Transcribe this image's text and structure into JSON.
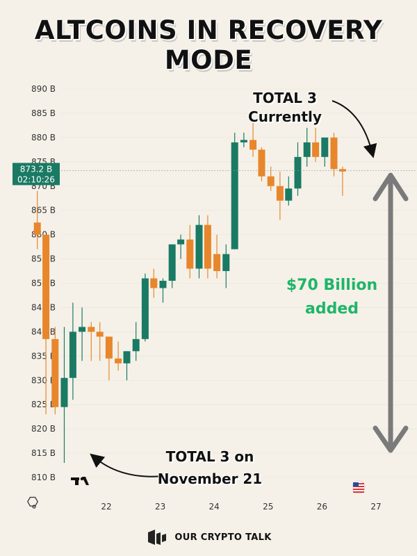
{
  "title": "ALTCOINS IN RECOVERY MODE",
  "annotations": {
    "current_line1": "TOTAL 3",
    "current_line2": "Currently",
    "added_line1": "$70 Billion",
    "added_line2": "added",
    "past_line1": "TOTAL 3 on",
    "past_line2": "November 21"
  },
  "price_label": {
    "value": "873.2 B",
    "countdown": "02:10:26"
  },
  "brand": {
    "name": "OUR CRYPTO TALK"
  },
  "colors": {
    "bull": "#1a7a64",
    "bear": "#e8862b",
    "accent_green": "#1fb56a",
    "price_tag": "#1a7a64",
    "arrow_gray": "#7a7a7a"
  },
  "chart_data": {
    "type": "candlestick",
    "ylim": [
      807,
      893
    ],
    "y_ticks": [
      {
        "v": 890,
        "label": "890 B"
      },
      {
        "v": 885,
        "label": "885 B"
      },
      {
        "v": 880,
        "label": "880 B"
      },
      {
        "v": 875,
        "label": "875 B"
      },
      {
        "v": 870,
        "label": "870 B"
      },
      {
        "v": 865,
        "label": "865 B"
      },
      {
        "v": 860,
        "label": "860 B"
      },
      {
        "v": 855,
        "label": "855 B"
      },
      {
        "v": 850,
        "label": "850 B"
      },
      {
        "v": 845,
        "label": "845 B"
      },
      {
        "v": 840,
        "label": "840 B"
      },
      {
        "v": 835,
        "label": "835 B"
      },
      {
        "v": 830,
        "label": "830 B"
      },
      {
        "v": 825,
        "label": "825 B"
      },
      {
        "v": 820,
        "label": "820 B"
      },
      {
        "v": 815,
        "label": "815 B"
      },
      {
        "v": 810,
        "label": "810 B"
      }
    ],
    "x_ticks": [
      {
        "v": 21.95,
        "label": "22"
      },
      {
        "v": 22.95,
        "label": "23"
      },
      {
        "v": 23.95,
        "label": "24"
      },
      {
        "v": 24.95,
        "label": "25"
      },
      {
        "v": 25.95,
        "label": "26"
      },
      {
        "v": 26.95,
        "label": "27"
      }
    ],
    "xlim": [
      20.65,
      27.4
    ],
    "current_price": 873.2,
    "candles": [
      {
        "t": 20.67,
        "o": 862.5,
        "h": 869,
        "l": 857,
        "c": 860
      },
      {
        "t": 20.83,
        "o": 860,
        "h": 860,
        "l": 823,
        "c": 838.5
      },
      {
        "t": 21.0,
        "o": 838.5,
        "h": 841,
        "l": 823,
        "c": 824.5
      },
      {
        "t": 21.17,
        "o": 824.5,
        "h": 841,
        "l": 813,
        "c": 830.5
      },
      {
        "t": 21.33,
        "o": 830.5,
        "h": 846,
        "l": 826,
        "c": 840
      },
      {
        "t": 21.5,
        "o": 840,
        "h": 845,
        "l": 834,
        "c": 841
      },
      {
        "t": 21.67,
        "o": 841,
        "h": 842,
        "l": 834,
        "c": 840
      },
      {
        "t": 21.83,
        "o": 840,
        "h": 842,
        "l": 834,
        "c": 839
      },
      {
        "t": 22.0,
        "o": 839,
        "h": 839,
        "l": 830,
        "c": 834.5
      },
      {
        "t": 22.17,
        "o": 834.5,
        "h": 838,
        "l": 832,
        "c": 833.5
      },
      {
        "t": 22.33,
        "o": 833.5,
        "h": 836,
        "l": 830,
        "c": 836
      },
      {
        "t": 22.5,
        "o": 836,
        "h": 842,
        "l": 834,
        "c": 838.5
      },
      {
        "t": 22.67,
        "o": 838.5,
        "h": 852,
        "l": 838,
        "c": 851
      },
      {
        "t": 22.83,
        "o": 851,
        "h": 853,
        "l": 847,
        "c": 849
      },
      {
        "t": 23.0,
        "o": 849,
        "h": 851,
        "l": 846,
        "c": 850.5
      },
      {
        "t": 23.17,
        "o": 850.5,
        "h": 858,
        "l": 849,
        "c": 858
      },
      {
        "t": 23.33,
        "o": 858,
        "h": 860,
        "l": 855,
        "c": 859
      },
      {
        "t": 23.5,
        "o": 859,
        "h": 862,
        "l": 851,
        "c": 853
      },
      {
        "t": 23.67,
        "o": 853,
        "h": 864,
        "l": 851,
        "c": 862
      },
      {
        "t": 23.83,
        "o": 862,
        "h": 864,
        "l": 851,
        "c": 853
      },
      {
        "t": 24.0,
        "o": 856,
        "h": 860,
        "l": 851,
        "c": 852.5
      },
      {
        "t": 24.17,
        "o": 852.5,
        "h": 858,
        "l": 849,
        "c": 856
      },
      {
        "t": 24.33,
        "o": 857,
        "h": 881,
        "l": 857,
        "c": 879
      },
      {
        "t": 24.5,
        "o": 879,
        "h": 881,
        "l": 878,
        "c": 879.5
      },
      {
        "t": 24.67,
        "o": 879.5,
        "h": 883,
        "l": 876,
        "c": 877.5
      },
      {
        "t": 24.83,
        "o": 877.5,
        "h": 878,
        "l": 871,
        "c": 872
      },
      {
        "t": 25.0,
        "o": 872,
        "h": 874,
        "l": 869,
        "c": 870
      },
      {
        "t": 25.17,
        "o": 870,
        "h": 873,
        "l": 863,
        "c": 867
      },
      {
        "t": 25.33,
        "o": 867,
        "h": 872,
        "l": 866,
        "c": 869.5
      },
      {
        "t": 25.5,
        "o": 869.5,
        "h": 879,
        "l": 868,
        "c": 876
      },
      {
        "t": 25.67,
        "o": 876,
        "h": 882,
        "l": 874,
        "c": 879
      },
      {
        "t": 25.83,
        "o": 879,
        "h": 882,
        "l": 875,
        "c": 876
      },
      {
        "t": 26.0,
        "o": 876,
        "h": 880,
        "l": 874,
        "c": 880
      },
      {
        "t": 26.17,
        "o": 880,
        "h": 881,
        "l": 872,
        "c": 873.5
      },
      {
        "t": 26.33,
        "o": 873.5,
        "h": 874,
        "l": 868,
        "c": 873
      }
    ]
  }
}
